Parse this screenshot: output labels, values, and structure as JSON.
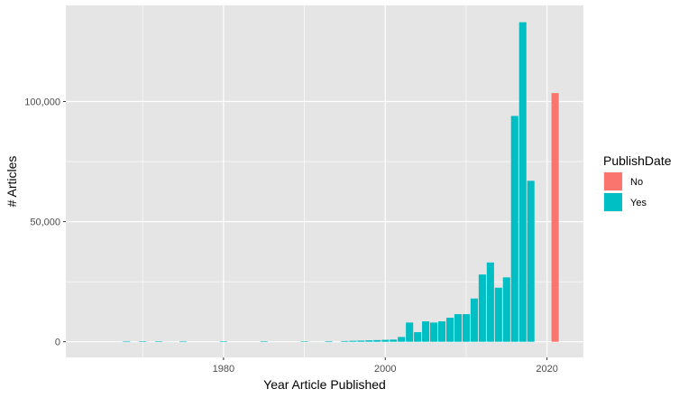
{
  "chart_data": {
    "type": "bar",
    "xlabel": "Year Article Published",
    "ylabel": "# Articles",
    "xlim": [
      1960.5,
      2024.5
    ],
    "ylim": [
      -6500,
      140000
    ],
    "x_ticks": [
      1980,
      2000,
      2020
    ],
    "x_tick_labels": [
      "1980",
      "2000",
      "2020"
    ],
    "y_ticks": [
      0,
      50000,
      100000
    ],
    "y_tick_labels": [
      "0",
      "50,000",
      "100,000"
    ],
    "grid": true,
    "background": "#e5e5e5",
    "legend": {
      "title": "PublishDate",
      "placement": "right",
      "entries": [
        {
          "label": "No",
          "color": "#f8766d"
        },
        {
          "label": "Yes",
          "color": "#00bfc4"
        }
      ]
    },
    "series": [
      {
        "name": "No",
        "color": "#f8766d",
        "points": [
          {
            "x": 2021,
            "y": 103500
          }
        ]
      },
      {
        "name": "Yes",
        "color": "#00bfc4",
        "points": [
          {
            "x": 1968,
            "y": 100
          },
          {
            "x": 1970,
            "y": 150
          },
          {
            "x": 1972,
            "y": 100
          },
          {
            "x": 1975,
            "y": 100
          },
          {
            "x": 1980,
            "y": 150
          },
          {
            "x": 1985,
            "y": 150
          },
          {
            "x": 1990,
            "y": 200
          },
          {
            "x": 1993,
            "y": 250
          },
          {
            "x": 1995,
            "y": 300
          },
          {
            "x": 1996,
            "y": 400
          },
          {
            "x": 1997,
            "y": 500
          },
          {
            "x": 1998,
            "y": 600
          },
          {
            "x": 1999,
            "y": 700
          },
          {
            "x": 2000,
            "y": 800
          },
          {
            "x": 2001,
            "y": 900
          },
          {
            "x": 2002,
            "y": 2000
          },
          {
            "x": 2003,
            "y": 8000
          },
          {
            "x": 2004,
            "y": 4000
          },
          {
            "x": 2005,
            "y": 8500
          },
          {
            "x": 2006,
            "y": 8000
          },
          {
            "x": 2007,
            "y": 8500
          },
          {
            "x": 2008,
            "y": 10000
          },
          {
            "x": 2009,
            "y": 11500
          },
          {
            "x": 2010,
            "y": 11500
          },
          {
            "x": 2011,
            "y": 18000
          },
          {
            "x": 2012,
            "y": 28000
          },
          {
            "x": 2013,
            "y": 33000
          },
          {
            "x": 2014,
            "y": 22500
          },
          {
            "x": 2015,
            "y": 26800
          },
          {
            "x": 2016,
            "y": 94000
          },
          {
            "x": 2017,
            "y": 133000
          },
          {
            "x": 2018,
            "y": 67000
          }
        ]
      }
    ]
  }
}
